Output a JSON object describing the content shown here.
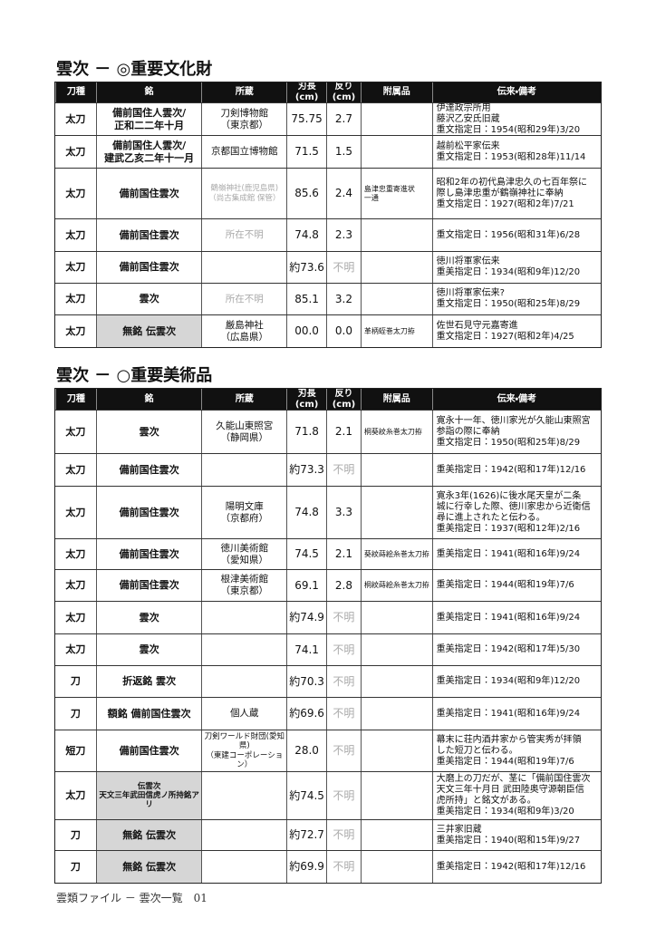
{
  "sections": [
    {
      "title": "雲次 － ◎重要文化財",
      "table": {
        "header": [
          "刀種",
          "銘",
          "所蔵",
          "刃長\n(cm)",
          "反り\n(cm)",
          "附属品",
          "伝来・備考"
        ],
        "rows": [
          [
            "太刀",
            "備前国住人雲次/\n正和二二年十月",
            "刀剣博物館\n（東京都）",
            "75.75",
            "2.7",
            null,
            "伊達政宗所用\n藤沢乙安氏旧蔵\n重文指定日：1954(昭和29年)3/20"
          ],
          [
            "太刀",
            "備前国住人雲次/\n建武乙亥二年十一月",
            "京都国立博物館",
            "71.5",
            "1.5",
            null,
            "越前松平家伝来\n重文指定日：1953(昭和28年)11/14"
          ],
          [
            "太刀",
            "備前国住雲次",
            "鶴嶺神社(鹿児島県)\n（尚古集成館 保管）",
            "85.6",
            "2.4",
            "島津忠重寄進状\n一通",
            "昭和2年の初代島津忠久の七百年祭に\n際し島津忠重が鶴嶺神社に奉納\n重文指定日：1927(昭和2年)7/21"
          ],
          [
            "太刀",
            "備前国住雲次",
            "所在不明",
            "74.8",
            "2.3",
            null,
            "重文指定日：1956(昭和31年)6/28"
          ],
          [
            "太刀",
            "備前国住雲次",
            null,
            "約73.6",
            "不明",
            null,
            "徳川将軍家伝来\n重美指定日：1934(昭和9年)12/20"
          ],
          [
            "太刀",
            "雲次",
            "所在不明",
            "85.1",
            "3.2",
            null,
            "徳川将軍家伝来?\n重文指定日：1950(昭和25年)8/29"
          ],
          [
            "太刀",
            "無銘 伝雲次",
            "厳島神社\n（広島県）",
            "00.0",
            "0.0",
            "革柄蛭巻太刀拵",
            "佐世石見守元嘉寄進\n重文指定日：1927(昭和2年)4/25"
          ]
        ]
      }
    },
    {
      "title": "雲次 － ○重要美術品",
      "table": {
        "header": [
          "刀種",
          "銘",
          "所蔵",
          "刃長\n(cm)",
          "反り\n(cm)",
          "附属品",
          "伝来・備考"
        ],
        "rows": [
          [
            "太刀",
            "雲次",
            "久能山東照宮\n（静岡県）",
            "71.8",
            "2.1",
            "桐葵紋糸巻太刀拵",
            "寛永十一年、徳川家光が久能山東照宮\n参詣の際に奉納\n重文指定日：1950(昭和25年)8/29"
          ],
          [
            "太刀",
            "備前国住雲次",
            null,
            "約73.3",
            "不明",
            null,
            "重美指定日：1942(昭和17年)12/16"
          ],
          [
            "太刀",
            "備前国住雲次",
            "陽明文庫\n（京都府）",
            "74.8",
            "3.3",
            null,
            "寛永3年(1626)に後水尾天皇が二条\n城に行幸した際、徳川家忠から近衛信\n尋に進上されたと伝わる。\n重美指定日：1937(昭和12年)2/16"
          ],
          [
            "太刀",
            "備前国住雲次",
            "徳川美術館\n（愛知県）",
            "74.5",
            "2.1",
            "葵紋蒔絵糸巻太刀拵",
            "重美指定日：1941(昭和16年)9/24"
          ],
          [
            "太刀",
            "備前国住雲次",
            "根津美術館\n（東京都）",
            "69.1",
            "2.8",
            "桐紋蒔絵糸巻太刀拵",
            "重美指定日：1944(昭和19年)7/6"
          ],
          [
            "太刀",
            "雲次",
            null,
            "約74.9",
            "不明",
            null,
            "重美指定日：1941(昭和16年)9/24"
          ],
          [
            "太刀",
            "雲次",
            null,
            "74.1",
            "不明",
            null,
            "重美指定日：1942(昭和17年)5/30"
          ],
          [
            "刀",
            "折返銘 雲次",
            null,
            "約70.3",
            "不明",
            null,
            "重美指定日：1934(昭和9年)12/20"
          ],
          [
            "刀",
            "額銘 備前国住雲次",
            "個人蔵",
            "約69.6",
            "不明",
            null,
            "重美指定日：1941(昭和16年)9/24"
          ],
          [
            "短刀",
            "備前国住雲次",
            "刀剣ワールド財団(愛知県)\n（東建コーポレーション）",
            "28.0",
            "不明",
            null,
            "幕末に荘内酒井家から管実秀が拝領\nした短刀と伝わる。\n重美指定日：1944(昭和19年)7/6"
          ],
          [
            "太刀",
            "伝雲次\n天文三年武田信虎ノ所持銘アリ",
            null,
            "約74.5",
            "不明",
            null,
            "大磨上の刀だが、茎に「備前国住雲次\n天文三年十月日 武田陸奥守源朝臣信\n虎所持」と銘文がある。\n重美指定日：1934(昭和9年)3/20"
          ],
          [
            "刀",
            "無銘 伝雲次",
            null,
            "約72.7",
            "不明",
            null,
            "三井家旧蔵\n重美指定日：1940(昭和15年)9/27"
          ],
          [
            "刀",
            "無銘 伝雲次",
            null,
            "約69.9",
            "不明",
            null,
            "重美指定日：1942(昭和17年)12/16"
          ]
        ]
      }
    }
  ],
  "footer": "雲類ファイル － 雲次一覧　01"
}
